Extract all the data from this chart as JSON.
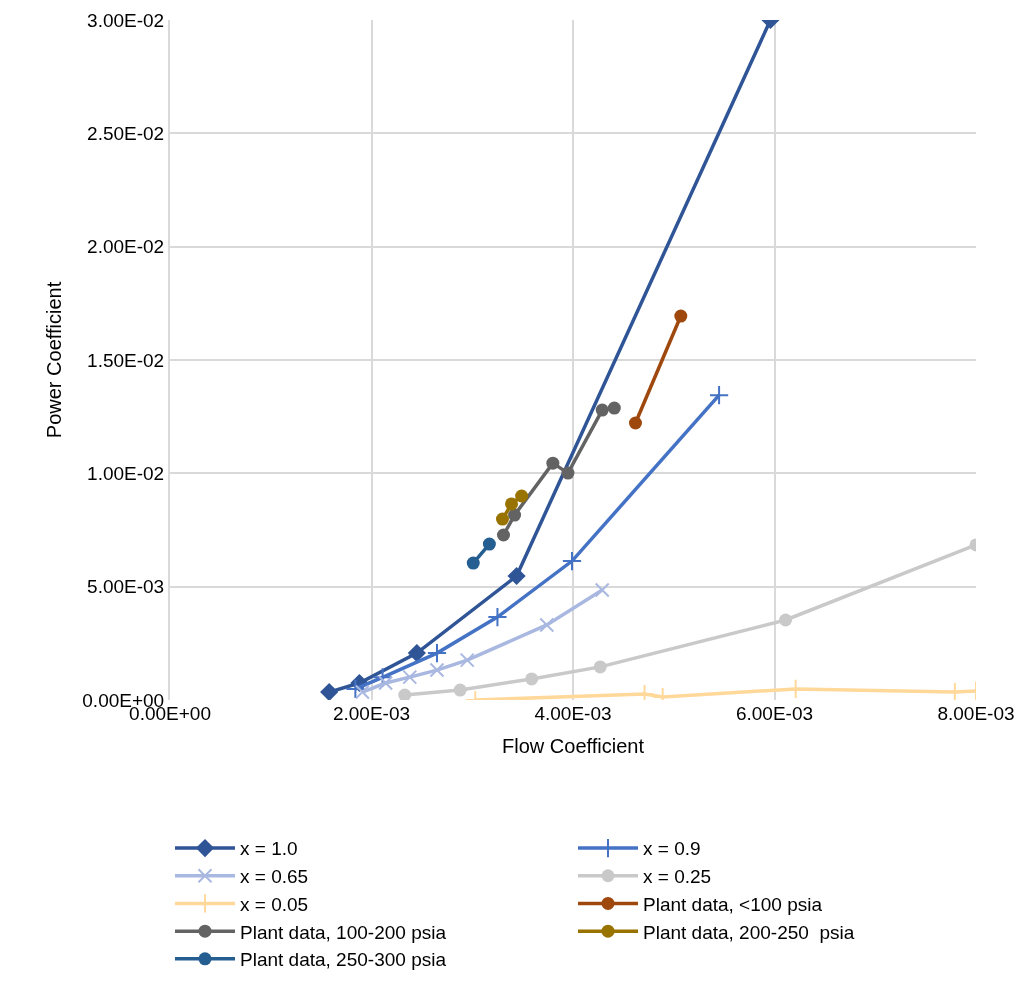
{
  "chart_data": {
    "type": "line",
    "xlabel": "Flow Coefficient",
    "ylabel": "Power Coefficient",
    "xlim": [
      0,
      0.008
    ],
    "ylim": [
      0,
      0.03
    ],
    "xticks": [
      {
        "value": 0,
        "label": "0.00E+00"
      },
      {
        "value": 0.002,
        "label": "2.00E-03"
      },
      {
        "value": 0.004,
        "label": "4.00E-03"
      },
      {
        "value": 0.006,
        "label": "6.00E-03"
      },
      {
        "value": 0.008,
        "label": "8.00E-03"
      }
    ],
    "yticks": [
      {
        "value": 0,
        "label": "0.00E+00"
      },
      {
        "value": 0.005,
        "label": "5.00E-03"
      },
      {
        "value": 0.01,
        "label": "1.00E-02"
      },
      {
        "value": 0.015,
        "label": "1.50E-02"
      },
      {
        "value": 0.02,
        "label": "2.00E-02"
      },
      {
        "value": 0.025,
        "label": "2.50E-02"
      },
      {
        "value": 0.03,
        "label": "3.00E-02"
      }
    ],
    "grid": true,
    "legend": "bottom",
    "series": [
      {
        "name": "x = 1.0",
        "color": "#2f5597",
        "marker": "diamond",
        "x": [
          0.00158,
          0.00188,
          0.00245,
          0.00344,
          0.00596
        ],
        "values": [
          0.00035,
          0.00075,
          0.00207,
          0.00547,
          0.03
        ]
      },
      {
        "name": "x = 0.9",
        "color": "#4472c4",
        "marker": "cross",
        "x": [
          0.00184,
          0.00211,
          0.00265,
          0.00325,
          0.00399,
          0.00545
        ],
        "values": [
          0.00049,
          0.001,
          0.00207,
          0.00366,
          0.00613,
          0.01345
        ]
      },
      {
        "name": "x = 0.65",
        "color": "#a9b8e0",
        "marker": "x",
        "x": [
          0.00191,
          0.00214,
          0.00238,
          0.00265,
          0.00295,
          0.00374,
          0.00429
        ],
        "values": [
          0.00035,
          0.00075,
          0.00101,
          0.00132,
          0.00176,
          0.00331,
          0.00485
        ]
      },
      {
        "name": "x = 0.25",
        "color": "#c9c9c9",
        "marker": "circle",
        "x": [
          0.00233,
          0.00288,
          0.00359,
          0.00427,
          0.00611,
          0.008
        ],
        "values": [
          0.00022,
          0.00044,
          0.00093,
          0.00146,
          0.00353,
          0.00684
        ]
      },
      {
        "name": "x = 0.05",
        "color": "#ffd89a",
        "marker": "cross",
        "x": [
          0.00303,
          0.00471,
          0.00489,
          0.00621,
          0.00779,
          0.008
        ],
        "values": [
          0.0,
          0.00026,
          0.00013,
          0.00049,
          0.00035,
          0.0004
        ]
      },
      {
        "name": "Plant data, <100 psia",
        "color": "#9e480e",
        "marker": "circle",
        "x": [
          0.00462,
          0.00507
        ],
        "values": [
          0.01222,
          0.01694
        ]
      },
      {
        "name": "Plant data, 100-200 psia",
        "color": "#636363",
        "marker": "circle",
        "x": [
          0.00331,
          0.00342,
          0.0038,
          0.00395,
          0.00429,
          0.00441
        ],
        "values": [
          0.00728,
          0.00816,
          0.01045,
          0.01001,
          0.01279,
          0.01288
        ]
      },
      {
        "name": "Plant data, 200-250  psia",
        "color": "#997300",
        "marker": "circle",
        "x": [
          0.0033,
          0.00339,
          0.00349
        ],
        "values": [
          0.00798,
          0.00865,
          0.009
        ]
      },
      {
        "name": "Plant data, 250-300 psia",
        "color": "#255e91",
        "marker": "circle",
        "x": [
          0.00301,
          0.00317
        ],
        "values": [
          0.00604,
          0.00688
        ]
      }
    ]
  }
}
